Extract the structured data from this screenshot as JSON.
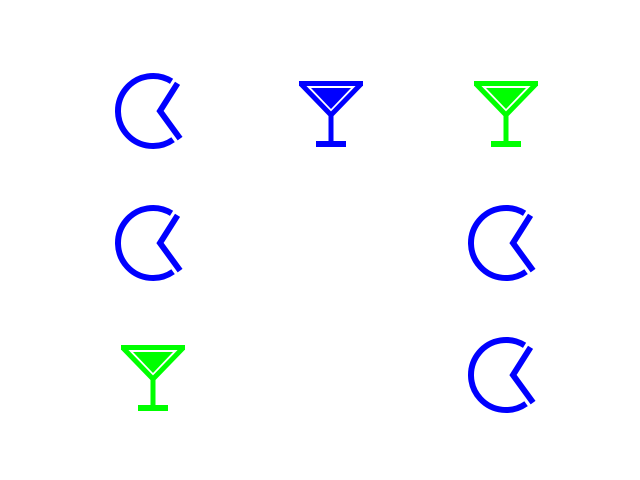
{
  "colors": {
    "blue": "#0000ff",
    "green": "#00ff00"
  },
  "grid": {
    "rows": 3,
    "cols": 3,
    "cells": [
      {
        "icon": "pie-chart-icon",
        "color": "blue"
      },
      {
        "icon": "cocktail-icon",
        "color": "blue"
      },
      {
        "icon": "cocktail-icon",
        "color": "green"
      },
      {
        "icon": "pie-chart-icon",
        "color": "blue"
      },
      null,
      {
        "icon": "pie-chart-icon",
        "color": "blue"
      },
      {
        "icon": "cocktail-icon",
        "color": "green"
      },
      null,
      {
        "icon": "pie-chart-icon",
        "color": "blue"
      }
    ]
  }
}
